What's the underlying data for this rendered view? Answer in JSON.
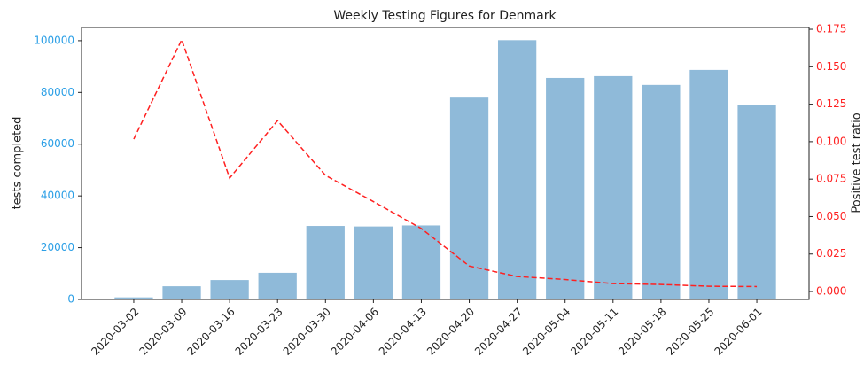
{
  "chart_data": {
    "type": "bar",
    "title": "Weekly Testing Figures for Denmark",
    "y_label": "tests completed",
    "y2_label": "Positive test ratio",
    "categories": [
      "2020-03-02",
      "2020-03-09",
      "2020-03-16",
      "2020-03-23",
      "2020-03-30",
      "2020-04-06",
      "2020-04-13",
      "2020-04-20",
      "2020-04-27",
      "2020-05-04",
      "2020-05-11",
      "2020-05-18",
      "2020-05-25",
      "2020-06-01"
    ],
    "series": [
      {
        "name": "tests completed",
        "type": "bar",
        "color": "#8fbad9",
        "values": [
          800,
          5100,
          7500,
          10300,
          28400,
          28200,
          28600,
          78000,
          100200,
          85600,
          86300,
          82900,
          88700,
          75000
        ]
      },
      {
        "name": "Positive test ratio",
        "type": "line",
        "axis": "y2",
        "color": "#ff2020",
        "values": [
          0.1017,
          0.168,
          0.0757,
          0.114,
          0.0775,
          0.06,
          0.042,
          0.017,
          0.01,
          0.008,
          0.0053,
          0.0047,
          0.0035,
          0.0033
        ]
      }
    ],
    "ylim": [
      0,
      105100
    ],
    "yticks": [
      0,
      20000,
      40000,
      60000,
      80000,
      100000
    ],
    "y_color": "#2b9fe6",
    "y2lim": [
      -0.0053,
      0.1762
    ],
    "y2ticks": [
      {
        "value": 0,
        "label": "0.000"
      },
      {
        "value": 0.025,
        "label": "0.025"
      },
      {
        "value": 0.05,
        "label": "0.050"
      },
      {
        "value": 0.075,
        "label": "0.075"
      },
      {
        "value": 0.1,
        "label": "0.100"
      },
      {
        "value": 0.125,
        "label": "0.125"
      },
      {
        "value": 0.15,
        "label": "0.150"
      },
      {
        "value": 0.175,
        "label": "0.175"
      }
    ],
    "y2_color": "#ff2020"
  }
}
